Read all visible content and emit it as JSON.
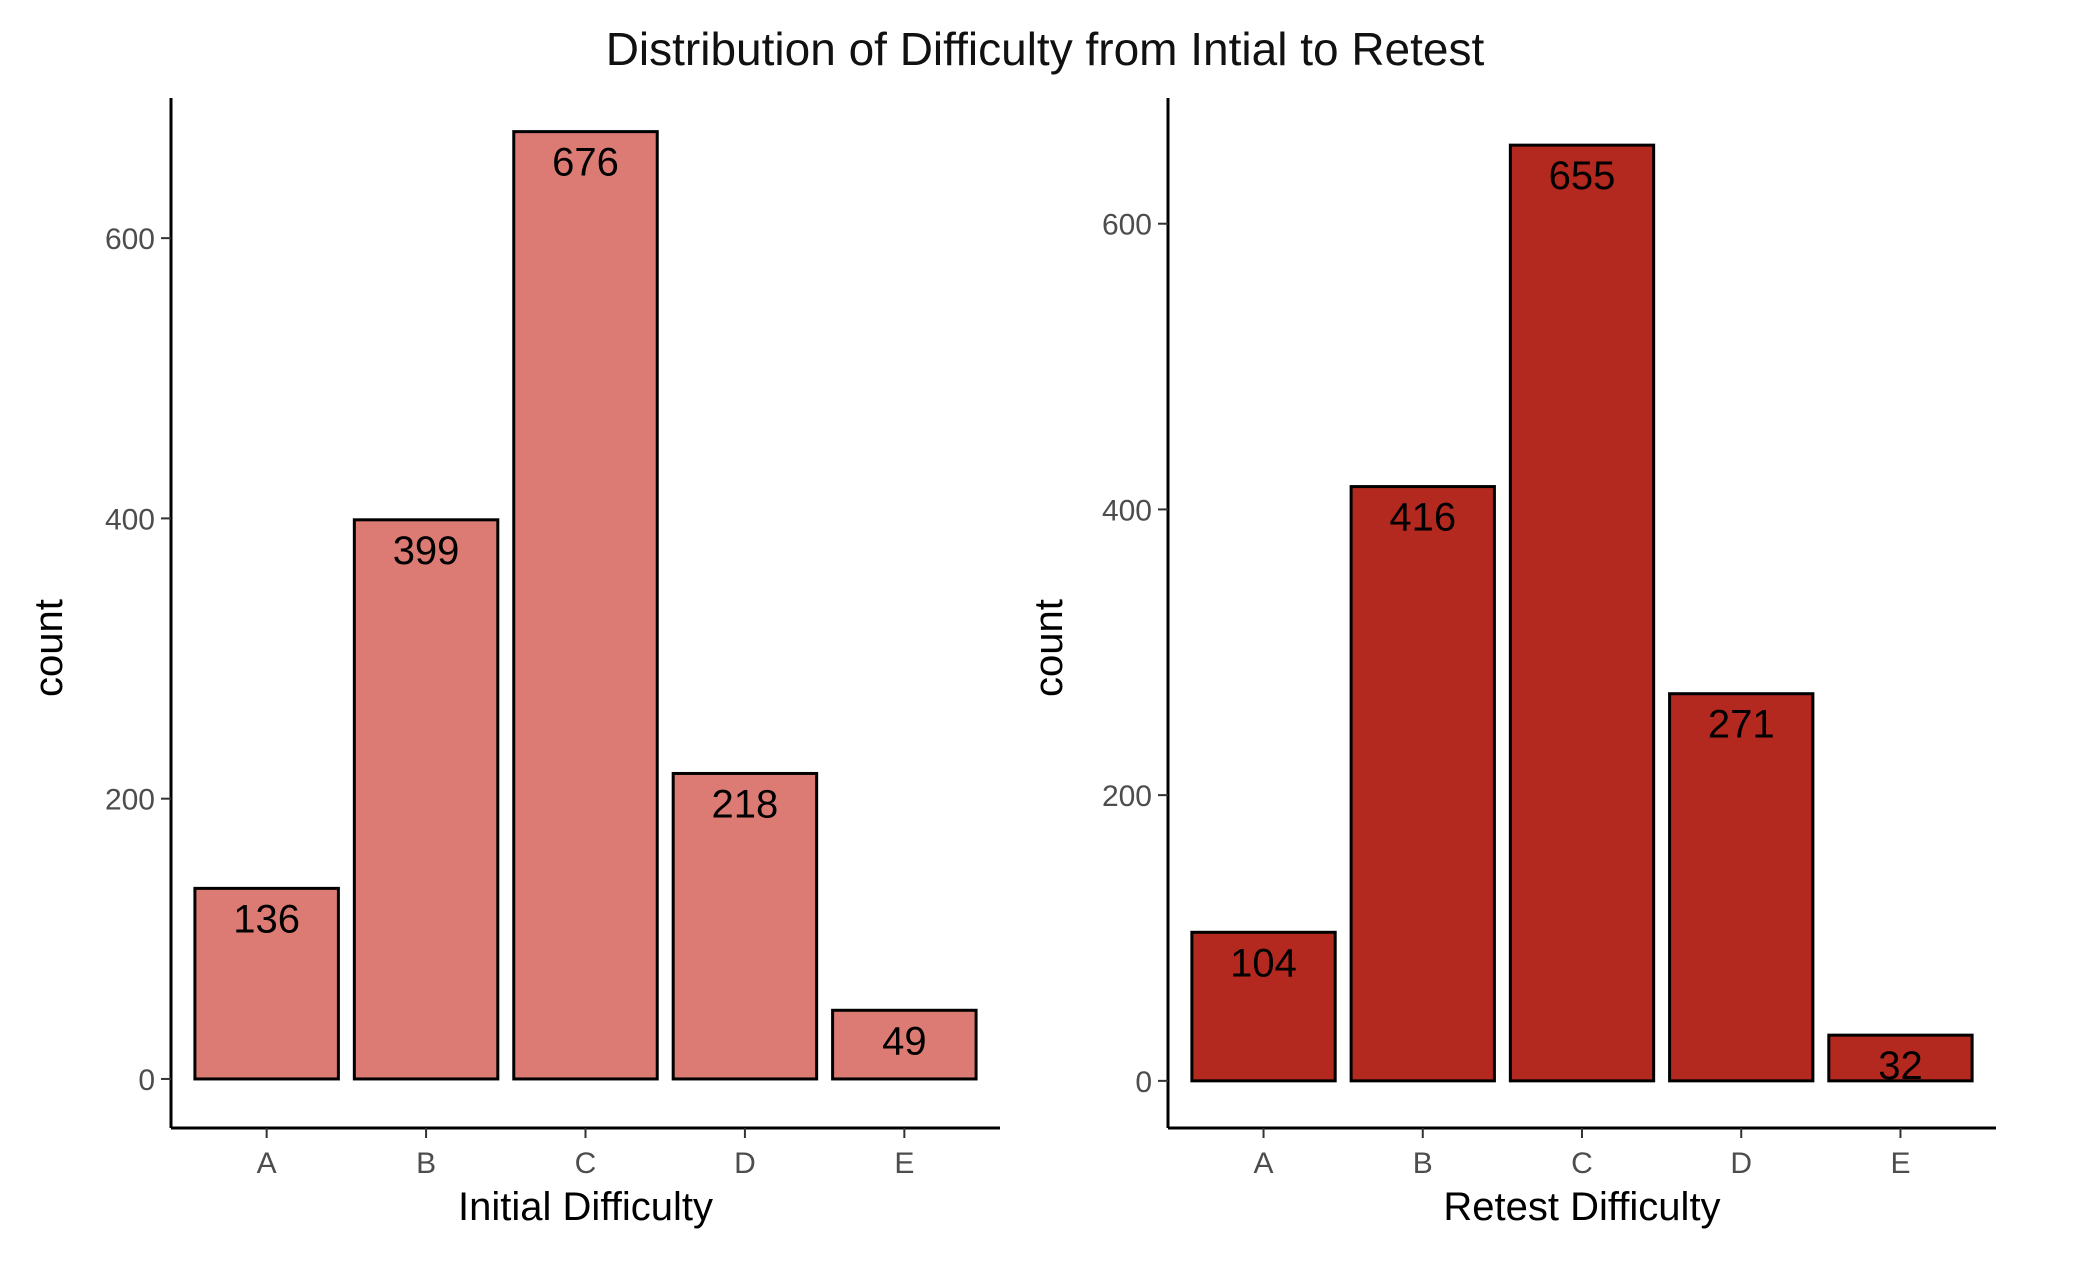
{
  "title": "Distribution of Difficulty from Intial to Retest",
  "chart_data": [
    {
      "type": "bar",
      "categories": [
        "A",
        "B",
        "C",
        "D",
        "E"
      ],
      "values": [
        136,
        399,
        676,
        218,
        49
      ],
      "data_labels": [
        "136",
        "399",
        "676",
        "218",
        "49"
      ],
      "xlabel": "Initial Difficulty",
      "ylabel": "count",
      "yticks": [
        0,
        200,
        400,
        600
      ],
      "ylim": [
        -35,
        700
      ],
      "color": "#DC7B74",
      "grid": false,
      "legend": "none"
    },
    {
      "type": "bar",
      "categories": [
        "A",
        "B",
        "C",
        "D",
        "E"
      ],
      "values": [
        104,
        416,
        655,
        271,
        32
      ],
      "data_labels": [
        "104",
        "416",
        "655",
        "271",
        "32"
      ],
      "xlabel": "Retest Difficulty",
      "ylabel": "count",
      "yticks": [
        0,
        200,
        400,
        600
      ],
      "ylim": [
        -33,
        688
      ],
      "color": "#B3281F",
      "grid": false,
      "legend": "none"
    }
  ]
}
